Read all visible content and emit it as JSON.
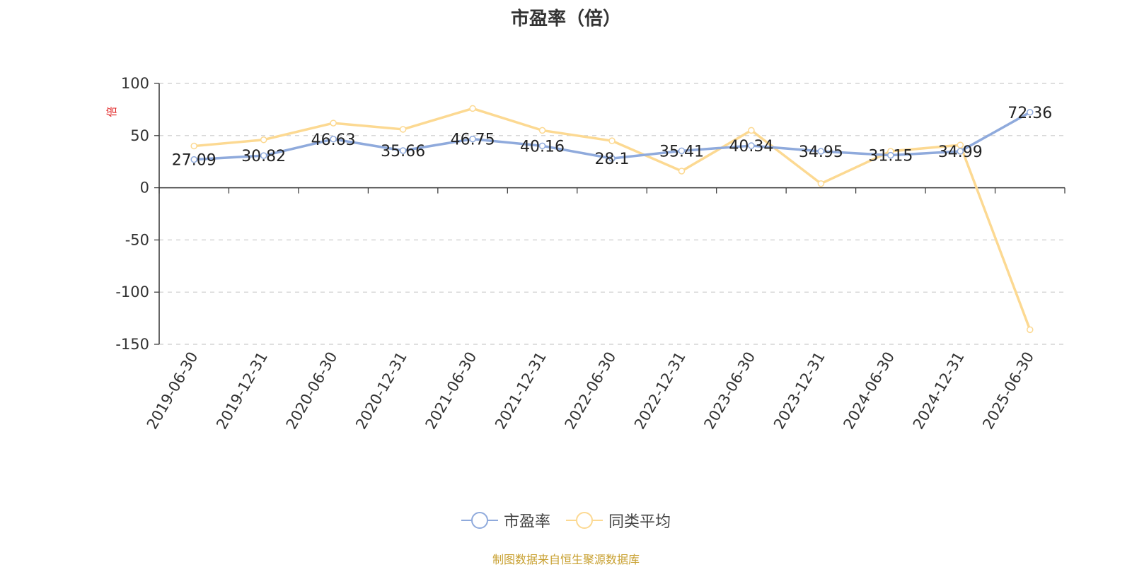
{
  "chart_data": {
    "type": "line",
    "title": "市盈率（倍）",
    "ylabel": "倍",
    "ylim": [
      -150,
      100
    ],
    "yticks": [
      100,
      50,
      0,
      -50,
      -100,
      -150
    ],
    "grid": true,
    "legend_position": "bottom",
    "categories": [
      "2019-06-30",
      "2019-12-31",
      "2020-06-30",
      "2020-12-31",
      "2021-06-30",
      "2021-12-31",
      "2022-06-30",
      "2022-12-31",
      "2023-06-30",
      "2023-12-31",
      "2024-06-30",
      "2024-12-31",
      "2025-06-30"
    ],
    "series": [
      {
        "name": "市盈率",
        "color": "#8faadc",
        "values": [
          27.09,
          30.82,
          46.63,
          35.66,
          46.75,
          40.16,
          28.1,
          35.41,
          40.34,
          34.95,
          31.15,
          34.99,
          72.36
        ],
        "labels": [
          "27.09",
          "30.82",
          "46.63",
          "35.66",
          "46.75",
          "40.16",
          "28.1",
          "35.41",
          "40.34",
          "34.95",
          "31.15",
          "34.99",
          "72.36"
        ]
      },
      {
        "name": "同类平均",
        "color": "#fcd992",
        "values": [
          40,
          46,
          62,
          56,
          76,
          55,
          45,
          16,
          55,
          4,
          35,
          41,
          -136
        ]
      }
    ]
  },
  "source_note": "制图数据来自恒生聚源数据库",
  "colors": {
    "axis": "#333333",
    "grid": "#cccccc",
    "ylabel": "#e02020",
    "source": "#c8a030"
  }
}
